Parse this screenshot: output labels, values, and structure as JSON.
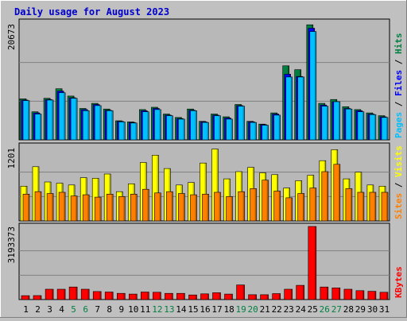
{
  "chart_data": {
    "type": "bar",
    "title": "Daily usage for August 2023",
    "categories": [
      "1",
      "2",
      "3",
      "4",
      "5",
      "6",
      "7",
      "8",
      "9",
      "10",
      "11",
      "12",
      "13",
      "14",
      "15",
      "16",
      "17",
      "18",
      "19",
      "20",
      "21",
      "22",
      "23",
      "24",
      "25",
      "26",
      "27",
      "28",
      "29",
      "30",
      "31"
    ],
    "weekend_days": [
      "5",
      "6",
      "12",
      "13",
      "19",
      "20",
      "26",
      "27"
    ],
    "colors": {
      "background": "#c0c0c0",
      "plot": "#b8b8b8",
      "title": "#0000cc",
      "hits": "#008040",
      "files": "#0000ff",
      "pages": "#00c0ff",
      "visits": "#ffff00",
      "sites": "#ff8000",
      "kbytes": "#ff0000",
      "weekend_label": "#008040",
      "weekday_label": "#000000"
    },
    "panels": [
      {
        "id": "hits",
        "max_label": "20673",
        "ylim": [
          0,
          20673
        ],
        "legend": [
          {
            "text": "Pages",
            "color": "#00c0ff"
          },
          {
            "text": " / ",
            "color": "#000000"
          },
          {
            "text": "Files",
            "color": "#0000ff"
          },
          {
            "text": " / ",
            "color": "#000000"
          },
          {
            "text": "Hits",
            "color": "#008040"
          }
        ],
        "series": [
          {
            "name": "Hits",
            "color": "#008040",
            "values": [
              7300,
              5000,
              7400,
              9100,
              7800,
              5600,
              6500,
              5500,
              3400,
              3200,
              5400,
              5800,
              4600,
              4000,
              5500,
              3300,
              4600,
              4100,
              6300,
              3300,
              2800,
              4800,
              13200,
              12500,
              20500,
              6500,
              7200,
              5900,
              5400,
              4800,
              4300
            ]
          },
          {
            "name": "Files",
            "color": "#0000ff",
            "values": [
              7100,
              4800,
              7200,
              8700,
              7500,
              5400,
              6300,
              5300,
              3300,
              3100,
              5200,
              5600,
              4400,
              3800,
              5300,
              3200,
              4400,
              3900,
              6100,
              3200,
              2700,
              4600,
              11700,
              11300,
              19900,
              6200,
              6800,
              5600,
              5200,
              4600,
              4100
            ]
          },
          {
            "name": "Pages",
            "color": "#00c0ff",
            "values": [
              7000,
              4600,
              7100,
              8400,
              7400,
              5200,
              6100,
              5200,
              3200,
              3000,
              5000,
              5400,
              4300,
              3700,
              5200,
              3100,
              4300,
              3700,
              6000,
              3100,
              2600,
              4400,
              11200,
              11200,
              19300,
              6000,
              6800,
              5500,
              5000,
              4500,
              4000
            ]
          }
        ]
      },
      {
        "id": "visits",
        "max_label": "1201",
        "ylim": [
          0,
          1201
        ],
        "legend": [
          {
            "text": "Sites",
            "color": "#ff8000"
          },
          {
            "text": " / ",
            "color": "#000000"
          },
          {
            "text": "Visits",
            "color": "#ffff00"
          }
        ],
        "series": [
          {
            "name": "Visits",
            "color": "#ffff00",
            "values": [
              570,
              890,
              640,
              620,
              590,
              710,
              700,
              770,
              480,
              610,
              960,
              1080,
              860,
              590,
              630,
              950,
              1180,
              690,
              810,
              880,
              790,
              760,
              540,
              660,
              750,
              990,
              1170,
              690,
              800,
              590,
              570
            ]
          },
          {
            "name": "Sites",
            "color": "#ff8000",
            "values": [
              440,
              480,
              450,
              470,
              410,
              430,
              390,
              440,
              400,
              440,
              520,
              460,
              480,
              450,
              430,
              440,
              470,
              400,
              480,
              530,
              670,
              490,
              380,
              450,
              540,
              810,
              930,
              530,
              470,
              470,
              470
            ]
          }
        ]
      },
      {
        "id": "kbytes",
        "max_label": "3193373",
        "ylim": [
          0,
          3193373
        ],
        "legend": [
          {
            "text": "KBytes",
            "color": "#ff0000"
          }
        ],
        "series": [
          {
            "name": "KBytes",
            "color": "#ff0000",
            "values": [
              170000,
              175000,
              450000,
              450000,
              550000,
              450000,
              350000,
              330000,
              270000,
              240000,
              330000,
              320000,
              270000,
              270000,
              200000,
              250000,
              300000,
              240000,
              640000,
              210000,
              210000,
              260000,
              450000,
              620000,
              3193373,
              550000,
              510000,
              450000,
              390000,
              360000,
              320000
            ]
          }
        ]
      }
    ]
  }
}
